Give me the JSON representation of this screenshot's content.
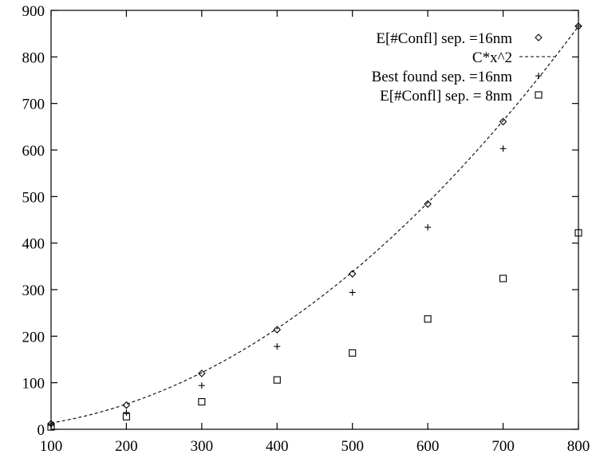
{
  "chart_data": {
    "type": "scatter",
    "title": "",
    "xlabel": "",
    "ylabel": "",
    "xlim": [
      100,
      800
    ],
    "ylim": [
      0,
      900
    ],
    "x_ticks": [
      100,
      200,
      300,
      400,
      500,
      600,
      700,
      800
    ],
    "y_ticks": [
      0,
      100,
      200,
      300,
      400,
      500,
      600,
      700,
      800,
      900
    ],
    "grid": false,
    "legend_position": "top-right",
    "series": [
      {
        "name": "E[#Confl] sep. =16nm",
        "marker": "diamond",
        "points": [
          [
            100,
            12
          ],
          [
            200,
            52
          ],
          [
            300,
            120
          ],
          [
            400,
            214
          ],
          [
            500,
            334
          ],
          [
            600,
            484
          ],
          [
            700,
            661
          ],
          [
            800,
            866
          ]
        ]
      },
      {
        "name": "C*x^2",
        "style": "dashed-line",
        "coefficient": 0.001353,
        "x_range": [
          100,
          800
        ]
      },
      {
        "name": "Best found sep. =16nm",
        "marker": "plus",
        "points": [
          [
            100,
            9
          ],
          [
            200,
            36
          ],
          [
            300,
            94
          ],
          [
            400,
            178
          ],
          [
            500,
            294
          ],
          [
            600,
            434
          ],
          [
            700,
            603
          ],
          [
            800,
            866
          ]
        ]
      },
      {
        "name": "E[#Confl] sep. = 8nm",
        "marker": "square",
        "points": [
          [
            100,
            5
          ],
          [
            200,
            27
          ],
          [
            300,
            59
          ],
          [
            400,
            106
          ],
          [
            500,
            164
          ],
          [
            600,
            237
          ],
          [
            700,
            324
          ],
          [
            800,
            422
          ]
        ]
      }
    ]
  }
}
